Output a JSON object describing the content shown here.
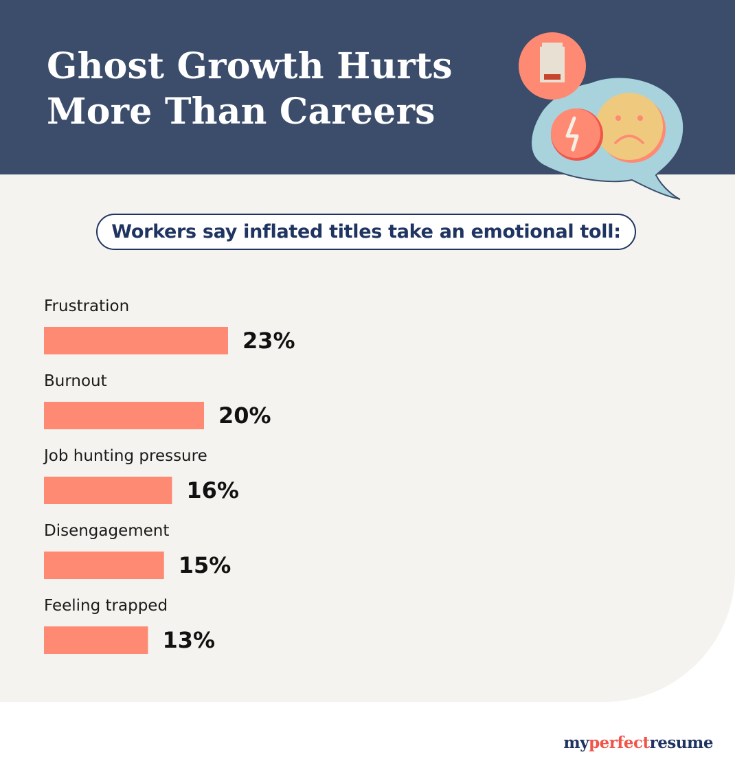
{
  "header": {
    "title_line1": "Ghost Growth Hurts",
    "title_line2": "More Than Careers"
  },
  "subtitle": "Workers say inflated titles take an emotional toll:",
  "illustration": {
    "icons": [
      "battery-low-icon",
      "lightning-icon",
      "sad-face-icon",
      "speech-bubble-icon"
    ]
  },
  "colors": {
    "header_bg": "#3b4d6b",
    "panel_bg": "#f5f3ef",
    "bar": "#ff8a73",
    "navy": "#1f3461",
    "accent_red": "#f0554a"
  },
  "chart_data": {
    "type": "bar",
    "orientation": "horizontal",
    "categories": [
      "Frustration",
      "Burnout",
      "Job hunting pressure",
      "Disengagement",
      "Feeling trapped"
    ],
    "values": [
      23,
      20,
      16,
      15,
      13
    ],
    "value_labels": [
      "23%",
      "20%",
      "16%",
      "15%",
      "13%"
    ],
    "unit": "%",
    "grid": false,
    "legend": "none"
  },
  "logo": {
    "part1": "my",
    "part2": "perfect",
    "part3": "resume"
  }
}
